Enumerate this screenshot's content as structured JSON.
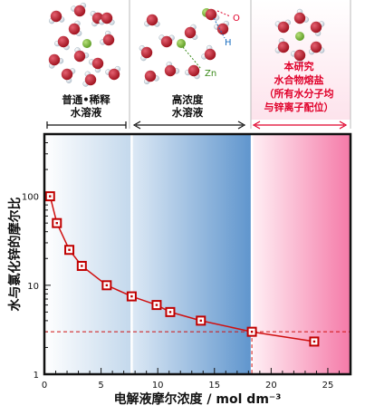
{
  "panels": [
    {
      "lines": [
        "普通•稀释",
        "水溶液"
      ],
      "color": "#111111"
    },
    {
      "lines": [
        "高浓度",
        "水溶液"
      ],
      "color": "#111111"
    },
    {
      "lines": [
        "本研究",
        "水合物熔盐",
        "（所有水分子均",
        "与锌离子配位）"
      ],
      "color": "#e0002a"
    }
  ],
  "molecule_labels": {
    "oxygen": "O",
    "hydrogen": "H",
    "zinc": "Zn"
  },
  "colors": {
    "oxygen": "#b3121f",
    "hydrogen": "#dfe8ef",
    "zinc": "#7dbb3c",
    "marker": "#c00000",
    "line": "#d01010",
    "this_work": "#e0002a",
    "bracket": "#111111"
  },
  "chart_data": {
    "type": "line",
    "xlabel": "电解液摩尔浓度 / mol dm⁻³",
    "ylabel": "水与氯化锌的摩尔比",
    "x_scale": "linear",
    "y_scale": "log",
    "xlim": [
      0,
      27
    ],
    "ylim": [
      1,
      500
    ],
    "xticks": [
      "0",
      "5",
      "10",
      "15",
      "20",
      "25"
    ],
    "yticks": [
      "1",
      "10",
      "100"
    ],
    "x": [
      0.5,
      1.1,
      2.2,
      3.3,
      5.5,
      7.7,
      9.9,
      11.1,
      13.8,
      18.3,
      23.8
    ],
    "y": [
      100,
      50,
      25,
      16.5,
      10,
      7.5,
      6,
      5,
      4,
      3,
      2.33
    ],
    "reference": {
      "y": 3,
      "x": 18.3
    },
    "regions": [
      {
        "from": 0,
        "to": 7.7,
        "style": "light-blue"
      },
      {
        "from": 7.7,
        "to": 18.3,
        "style": "blue"
      },
      {
        "from": 18.3,
        "to": 27,
        "style": "pink"
      }
    ]
  }
}
